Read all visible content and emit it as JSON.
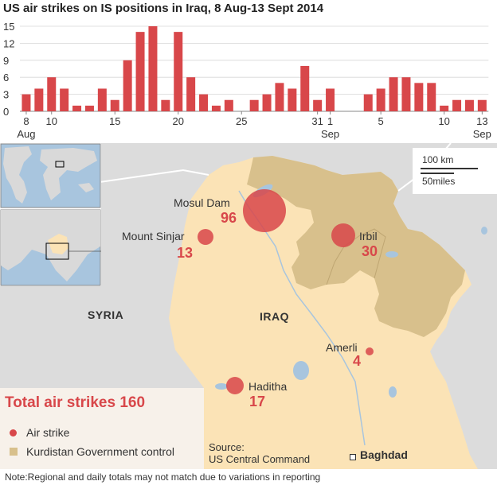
{
  "title": "US air strikes on IS positions in Iraq, 8 Aug-13 Sept 2014",
  "chart_data": {
    "type": "bar",
    "title": "US air strikes on IS positions in Iraq, 8 Aug-13 Sept 2014",
    "categories": [
      "8 Aug",
      "9 Aug",
      "10 Aug",
      "11 Aug",
      "12 Aug",
      "13 Aug",
      "14 Aug",
      "15 Aug",
      "16 Aug",
      "17 Aug",
      "18 Aug",
      "19 Aug",
      "20 Aug",
      "21 Aug",
      "22 Aug",
      "23 Aug",
      "24 Aug",
      "25 Aug",
      "26 Aug",
      "27 Aug",
      "28 Aug",
      "29 Aug",
      "30 Aug",
      "31 Aug",
      "1 Sep",
      "2 Sep",
      "3 Sep",
      "4 Sep",
      "5 Sep",
      "6 Sep",
      "7 Sep",
      "8 Sep",
      "9 Sep",
      "10 Sep",
      "11 Sep",
      "12 Sep",
      "13 Sep"
    ],
    "values": [
      3,
      4,
      6,
      4,
      1,
      1,
      4,
      2,
      9,
      14,
      15,
      2,
      14,
      6,
      3,
      1,
      2,
      0,
      2,
      3,
      5,
      4,
      8,
      2,
      4,
      0,
      0,
      3,
      4,
      6,
      6,
      5,
      5,
      1,
      2,
      2,
      2
    ],
    "ylim": [
      0,
      15
    ],
    "yticks": [
      0,
      3,
      6,
      9,
      12,
      15
    ],
    "xtick_labels": [
      {
        "index": 0,
        "top": "8",
        "bottom": "Aug"
      },
      {
        "index": 2,
        "top": "10",
        "bottom": ""
      },
      {
        "index": 7,
        "top": "15",
        "bottom": ""
      },
      {
        "index": 12,
        "top": "20",
        "bottom": ""
      },
      {
        "index": 17,
        "top": "25",
        "bottom": ""
      },
      {
        "index": 23,
        "top": "31",
        "bottom": ""
      },
      {
        "index": 24,
        "top": "1",
        "bottom": "Sep"
      },
      {
        "index": 28,
        "top": "5",
        "bottom": ""
      },
      {
        "index": 33,
        "top": "10",
        "bottom": ""
      },
      {
        "index": 36,
        "top": "13",
        "bottom": "Sep"
      }
    ],
    "grid": true,
    "bar_color": "#d8474a"
  },
  "map": {
    "countries": {
      "syria": "SYRIA",
      "iraq": "IRAQ"
    },
    "scale": {
      "km": "100 km",
      "miles": "50miles"
    },
    "locations": [
      {
        "id": "mosul-dam",
        "name": "Mosul Dam",
        "strikes": "96"
      },
      {
        "id": "mount-sinjar",
        "name": "Mount Sinjar",
        "strikes": "13"
      },
      {
        "id": "irbil",
        "name": "Irbil",
        "strikes": "30"
      },
      {
        "id": "amerli",
        "name": "Amerli",
        "strikes": "4"
      },
      {
        "id": "haditha",
        "name": "Haditha",
        "strikes": "17"
      }
    ],
    "capital": "Baghdad",
    "colors": {
      "iraq": "#fbe3b6",
      "kurdistan": "#d8c08c",
      "water": "#a8c5de",
      "neighbours": "#dcdcdc",
      "strike": "#d8474a"
    }
  },
  "legend": {
    "title": "Total air strikes 160",
    "items": [
      {
        "label": "Air strike"
      },
      {
        "label": "Kurdistan Government control"
      }
    ]
  },
  "source": {
    "line1": "Source:",
    "line2": "US Central Command"
  },
  "note": "Note:Regional and daily totals may not match due to variations in reporting"
}
